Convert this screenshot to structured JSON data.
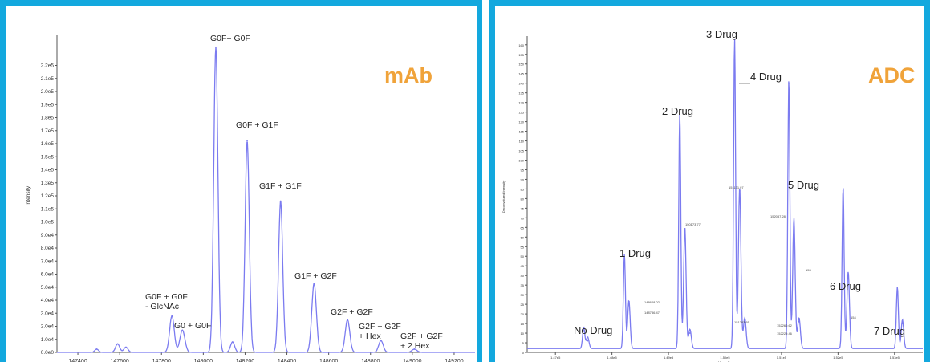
{
  "colors": {
    "border": "#13a8de",
    "badge": "#f0a33a",
    "trace": "#7b7bf0"
  },
  "chart_data": [
    {
      "type": "line",
      "badge": "mAb",
      "ylabel": "Intensity",
      "xlabel": "",
      "xlim": [
        147300,
        149300
      ],
      "ylim": [
        0,
        240000
      ],
      "x_ticks": [
        147400,
        147600,
        147800,
        148000,
        148200,
        148400,
        148600,
        148800,
        149000,
        149200
      ],
      "x_tick_labels": [
        "147400",
        "147600",
        "147800",
        "148000",
        "148200",
        "148400",
        "148600",
        "148800",
        "149000",
        "149200"
      ],
      "y_ticks": [
        0,
        10000,
        20000,
        30000,
        40000,
        50000,
        60000,
        70000,
        80000,
        90000,
        100000,
        110000,
        120000,
        130000,
        140000,
        150000,
        160000,
        170000,
        180000,
        190000,
        200000,
        210000,
        220000
      ],
      "y_tick_labels": [
        "0.0e0",
        "1.0e4",
        "2.0e4",
        "3.0e4",
        "4.0e4",
        "5.0e4",
        "6.0e4",
        "7.0e4",
        "8.0e4",
        "9.0e4",
        "1.0e5",
        "1.1e5",
        "1.2e5",
        "1.3e5",
        "1.4e5",
        "1.5e5",
        "1.6e5",
        "1.7e5",
        "1.8e5",
        "1.9e5",
        "2.0e5",
        "2.1e5",
        "2.2e5"
      ],
      "peaks": [
        {
          "x": 147490,
          "y": 2500,
          "w": 9
        },
        {
          "x": 147590,
          "y": 6500,
          "w": 10
        },
        {
          "x": 147630,
          "y": 4000,
          "w": 10
        },
        {
          "x": 147850,
          "y": 28000,
          "w": 11
        },
        {
          "x": 147900,
          "y": 17000,
          "w": 12
        },
        {
          "x": 148060,
          "y": 234000,
          "w": 10
        },
        {
          "x": 148140,
          "y": 8000,
          "w": 10
        },
        {
          "x": 148210,
          "y": 162000,
          "w": 10
        },
        {
          "x": 148370,
          "y": 116000,
          "w": 10
        },
        {
          "x": 148530,
          "y": 53000,
          "w": 11
        },
        {
          "x": 148690,
          "y": 25000,
          "w": 11
        },
        {
          "x": 148850,
          "y": 9000,
          "w": 11
        },
        {
          "x": 149010,
          "y": 2500,
          "w": 12
        }
      ],
      "annotations": [
        {
          "lines": [
            "G0F+ G0F"
          ],
          "x": 148060,
          "y": 234000
        },
        {
          "lines": [
            "G0F + G1F"
          ],
          "x": 148210,
          "y": 162000
        },
        {
          "lines": [
            "G1F + G1F"
          ],
          "x": 148370,
          "y": 116000
        },
        {
          "lines": [
            "G1F + G2F"
          ],
          "x": 148530,
          "y": 53000
        },
        {
          "lines": [
            "G0 + G0F"
          ],
          "x": 147900,
          "y": 17000
        },
        {
          "lines": [
            "G0F + G0F",
            "- GlcNAc"
          ],
          "x": 147850,
          "y": 28000
        },
        {
          "lines": [
            "G2F + G2F"
          ],
          "x": 148690,
          "y": 25000
        },
        {
          "lines": [
            "G2F + G2F",
            "+ Hex"
          ],
          "x": 148850,
          "y": 9000
        },
        {
          "lines": [
            "G2F + G2F",
            "+ 2 Hex"
          ],
          "x": 149010,
          "y": 2500
        }
      ]
    },
    {
      "type": "line",
      "badge": "ADC",
      "ylabel": "Deconvoluted Intensity",
      "xlabel": "Mass, Da",
      "xlim": [
        147000,
        154000
      ],
      "ylim": [
        0,
        162
      ],
      "x_ticks": [
        147500,
        148500,
        149500,
        150500,
        151500,
        152500,
        153500
      ],
      "x_tick_labels": [
        "1.47e5",
        "1.48e5",
        "1.49e5",
        "1.50e5",
        "1.51e5",
        "1.52e5",
        "1.53e5"
      ],
      "y_ticks": [
        0,
        5,
        10,
        15,
        20,
        25,
        30,
        35,
        40,
        45,
        50,
        55,
        60,
        65,
        70,
        75,
        80,
        85,
        90,
        95,
        100,
        105,
        110,
        115,
        120,
        125,
        130,
        135,
        140,
        145,
        150,
        155,
        160
      ],
      "y_tick_labels": [
        "0",
        "5",
        "10",
        "15",
        "20",
        "25",
        "30",
        "35",
        "40",
        "45",
        "50",
        "55",
        "60",
        "65",
        "70",
        "75",
        "80",
        "85",
        "90",
        "95",
        "100",
        "105",
        "110",
        "115",
        "120",
        "125",
        "130",
        "135",
        "140",
        "145",
        "150",
        "155",
        "160"
      ],
      "peaks": [
        {
          "x": 148000,
          "y": 11,
          "w": 20
        },
        {
          "x": 148070,
          "y": 6,
          "w": 24
        },
        {
          "x": 148720,
          "y": 49,
          "w": 18
        },
        {
          "x": 148800,
          "y": 25,
          "w": 22
        },
        {
          "x": 149700,
          "y": 123,
          "w": 18
        },
        {
          "x": 149790,
          "y": 63,
          "w": 22
        },
        {
          "x": 149880,
          "y": 10,
          "w": 24
        },
        {
          "x": 150670,
          "y": 161,
          "w": 18
        },
        {
          "x": 150760,
          "y": 84,
          "w": 22
        },
        {
          "x": 150850,
          "y": 16,
          "w": 24
        },
        {
          "x": 151630,
          "y": 140,
          "w": 18
        },
        {
          "x": 151720,
          "y": 68,
          "w": 22
        },
        {
          "x": 151810,
          "y": 16,
          "w": 24
        },
        {
          "x": 152590,
          "y": 84,
          "w": 18
        },
        {
          "x": 152680,
          "y": 40,
          "w": 22
        },
        {
          "x": 153550,
          "y": 32,
          "w": 18
        },
        {
          "x": 153640,
          "y": 15,
          "w": 22
        },
        {
          "x": 154500,
          "y": 9,
          "w": 20
        }
      ],
      "annotations": [
        {
          "lines": [
            "No Drug"
          ],
          "x": 148000,
          "y": 11
        },
        {
          "lines": [
            "1 Drug"
          ],
          "x": 148720,
          "y": 49
        },
        {
          "lines": [
            "2 Drug"
          ],
          "x": 149700,
          "y": 123
        },
        {
          "lines": [
            "3 Drug"
          ],
          "x": 150670,
          "y": 161
        },
        {
          "lines": [
            "4 Drug"
          ],
          "x": 151630,
          "y": 140
        },
        {
          "lines": [
            "5 Drug"
          ],
          "x": 152590,
          "y": 84
        },
        {
          "lines": [
            "6 Drug"
          ],
          "x": 153550,
          "y": 32
        },
        {
          "lines": [
            "7 Drug"
          ],
          "x": 154500,
          "y": 9
        }
      ],
      "small_labels": [
        {
          "text": "148628.02",
          "x": 148800,
          "y": 25
        },
        {
          "text": "148786.47",
          "x": 148820,
          "y": 21
        },
        {
          "text": "150173.77",
          "x": 149790,
          "y": 63
        },
        {
          "text": "151131.07",
          "x": 150760,
          "y": 84
        },
        {
          "text": "151283.65",
          "x": 150850,
          "y": 16
        },
        {
          "text": "152087.28",
          "x": 151720,
          "y": 68
        },
        {
          "text": "152260.62",
          "x": 151810,
          "y": 16
        },
        {
          "text": "152229.46",
          "x": 151815,
          "y": 12
        },
        {
          "text": "153",
          "x": 152680,
          "y": 40
        },
        {
          "text": "154",
          "x": 153640,
          "y": 15
        }
      ]
    }
  ]
}
